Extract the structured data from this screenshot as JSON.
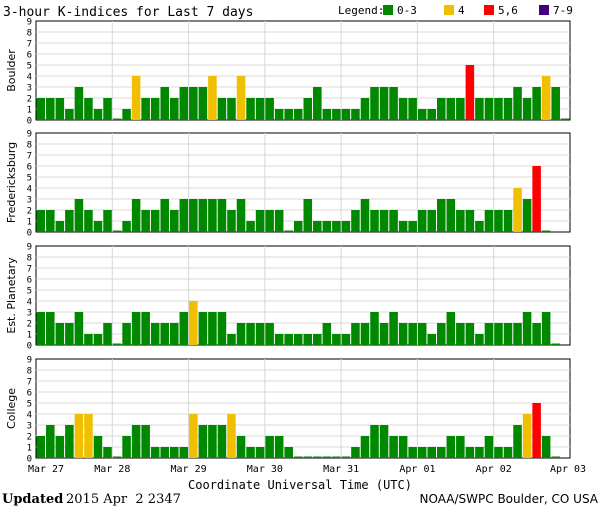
{
  "header": {
    "title": "3-hour K-indices for Last 7 days",
    "legend_label": "Legend:",
    "legend": [
      {
        "label": "0-3",
        "color": "#008800"
      },
      {
        "label": "4",
        "color": "#f0c000"
      },
      {
        "label": "5,6",
        "color": "#ff0000"
      },
      {
        "label": "7-9",
        "color": "#400080"
      }
    ]
  },
  "footer": {
    "updated_label": "Updated",
    "updated_value": "2015 Apr  2 2347",
    "credit": "NOAA/SWPC Boulder, CO USA"
  },
  "chart_data": {
    "type": "bar",
    "xlabel": "Coordinate Universal Time (UTC)",
    "x_ticks": [
      "Mar 27",
      "Mar 28",
      "Mar 29",
      "Mar 30",
      "Mar 31",
      "Apr 01",
      "Apr 02",
      "Apr 03"
    ],
    "ylim": [
      0,
      9
    ],
    "y_ticks": [
      "0",
      "1",
      "2",
      "3",
      "4",
      "5",
      "6",
      "7",
      "8",
      "9"
    ],
    "grid": true,
    "bins_per_day": 8,
    "days": 7,
    "color_scale": {
      "0-3": "#008800",
      "4": "#f0c000",
      "5-6": "#ff0000",
      "7-9": "#400080"
    },
    "series": [
      {
        "name": "Boulder",
        "values": [
          2,
          2,
          2,
          1,
          3,
          2,
          1,
          2,
          0,
          1,
          4,
          2,
          2,
          3,
          2,
          3,
          3,
          3,
          4,
          2,
          2,
          4,
          2,
          2,
          2,
          1,
          1,
          1,
          2,
          3,
          1,
          1,
          1,
          1,
          2,
          3,
          3,
          3,
          2,
          2,
          1,
          1,
          2,
          2,
          2,
          5,
          2,
          2,
          2,
          2,
          3,
          2,
          3,
          4,
          3,
          0
        ]
      },
      {
        "name": "Fredericksburg",
        "values": [
          2,
          2,
          1,
          2,
          3,
          2,
          1,
          2,
          0,
          1,
          3,
          2,
          2,
          3,
          2,
          3,
          3,
          3,
          3,
          3,
          2,
          3,
          1,
          2,
          2,
          2,
          0,
          1,
          3,
          1,
          1,
          1,
          1,
          2,
          3,
          2,
          2,
          2,
          1,
          1,
          2,
          2,
          3,
          3,
          2,
          2,
          1,
          2,
          2,
          2,
          4,
          3,
          6,
          0
        ]
      },
      {
        "name": "Est. Planetary",
        "values": [
          3,
          3,
          2,
          2,
          3,
          1,
          1,
          2,
          0,
          2,
          3,
          3,
          2,
          2,
          2,
          3,
          4,
          3,
          3,
          3,
          1,
          2,
          2,
          2,
          2,
          1,
          1,
          1,
          1,
          1,
          2,
          1,
          1,
          2,
          2,
          3,
          2,
          3,
          2,
          2,
          2,
          1,
          2,
          3,
          2,
          2,
          1,
          2,
          2,
          2,
          2,
          3,
          2,
          3,
          0
        ]
      },
      {
        "name": "College",
        "values": [
          2,
          3,
          2,
          3,
          4,
          4,
          2,
          1,
          0,
          2,
          3,
          3,
          1,
          1,
          1,
          1,
          4,
          3,
          3,
          3,
          4,
          2,
          1,
          1,
          2,
          2,
          1,
          0,
          0,
          0,
          0,
          0,
          0,
          1,
          2,
          3,
          3,
          2,
          2,
          1,
          1,
          1,
          1,
          2,
          2,
          1,
          1,
          2,
          1,
          1,
          3,
          4,
          5,
          2,
          0
        ]
      }
    ]
  }
}
